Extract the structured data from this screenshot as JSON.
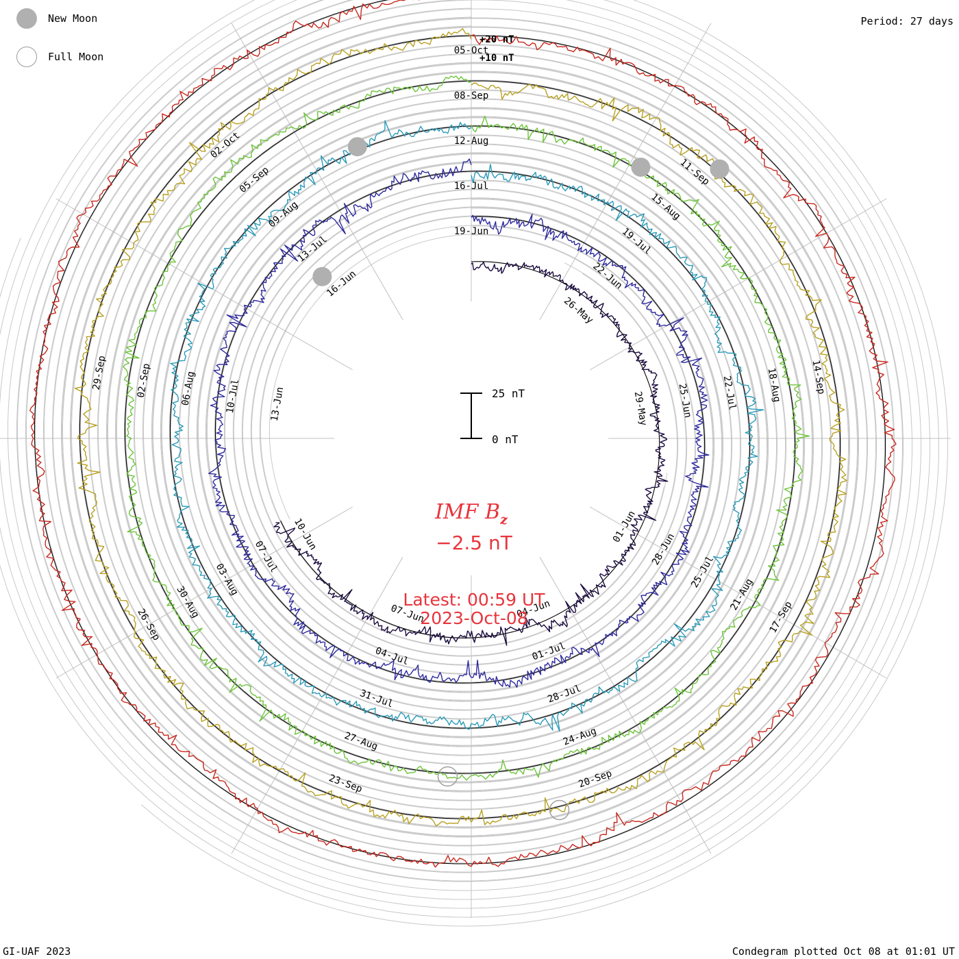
{
  "header": {
    "period": "Period: 27 days",
    "credit": "GI-UAF 2023",
    "plotted": "Condegram plotted Oct 08 at 01:01 UT"
  },
  "legend": {
    "new_moon": "New Moon",
    "full_moon": "Full Moon",
    "new_moon_color": "#b0b0b0",
    "full_moon_color": "#ffffff"
  },
  "center": {
    "title_imf": "IMF B",
    "title_sub": "z",
    "value": "−2.5 nT",
    "latest": "Latest: 00:59 UT",
    "date": "2023-Oct-08",
    "color": "#e8343c"
  },
  "chart_data": {
    "type": "line",
    "title": "IMF Bz condegram",
    "period_days": 27,
    "latest_value_nT": -2.5,
    "scale": {
      "labels": [
        "+20 nT",
        "+10 nT"
      ],
      "bar_top": "25 nT",
      "bar_bottom": "0 nT",
      "bar_span_nT": 25
    },
    "rings": [
      {
        "start": "2023-05-23",
        "color": "#1a0a3e",
        "amp": 7.5,
        "seed": 11,
        "base_nT": 0,
        "span_days": 18.5,
        "labels": [
          "26-May",
          "29-May",
          "01-Jun",
          "04-Jun",
          "07-Jun",
          "10-Jun",
          "13-Jun",
          "16-Jun",
          "19-Jun"
        ]
      },
      {
        "start": "2023-06-19",
        "color": "#2e2a9e",
        "amp": 8.5,
        "seed": 23,
        "base_nT": 0,
        "span_days": 27,
        "labels": [
          "22-Jun",
          "25-Jun",
          "28-Jun",
          "01-Jul",
          "04-Jul",
          "07-Jul",
          "10-Jul",
          "13-Jul",
          "16-Jul"
        ]
      },
      {
        "start": "2023-07-16",
        "color": "#2a9ab8",
        "amp": 8,
        "seed": 37,
        "base_nT": 0,
        "span_days": 27,
        "labels": [
          "19-Jul",
          "22-Jul",
          "25-Jul",
          "28-Jul",
          "31-Jul",
          "03-Aug",
          "06-Aug",
          "09-Aug",
          "12-Aug"
        ]
      },
      {
        "start": "2023-08-12",
        "color": "#6cc43a",
        "amp": 7,
        "seed": 41,
        "base_nT": 0,
        "span_days": 27,
        "labels": [
          "15-Aug",
          "18-Aug",
          "21-Aug",
          "24-Aug",
          "27-Aug",
          "30-Aug",
          "02-Sep",
          "05-Sep",
          "08-Sep"
        ]
      },
      {
        "start": "2023-09-08",
        "color": "#b8a020",
        "amp": 8,
        "seed": 53,
        "base_nT": 0,
        "span_days": 27,
        "labels": [
          "11-Sep",
          "14-Sep",
          "17-Sep",
          "20-Sep",
          "23-Sep",
          "26-Sep",
          "29-Sep",
          "02-Oct",
          "05-Oct"
        ]
      },
      {
        "start": "2023-10-05",
        "color": "#c8281e",
        "amp": 7,
        "seed": 67,
        "base_nT": 0,
        "span_days": 27,
        "labels": []
      }
    ],
    "ring_colors_by_angle": {
      "ring_4": [
        "#6cc43a",
        "#8cc43a",
        "#a8b828",
        "#b8a020",
        "#c88a18",
        "#c86014"
      ],
      "ring_5": [
        "#b8a020",
        "#c08a1a",
        "#c87414",
        "#c85a14",
        "#c44218",
        "#c8281e"
      ]
    },
    "new_moons": [
      {
        "ring": 0,
        "day": 23.8
      },
      {
        "ring": 2,
        "day": 25.4
      },
      {
        "ring": 3,
        "day": 2.4
      },
      {
        "ring": 4,
        "day": 3.2
      }
    ],
    "full_moons": [
      {
        "ring": 3,
        "day": 13.8
      },
      {
        "ring": 4,
        "day": 12.5
      }
    ]
  }
}
